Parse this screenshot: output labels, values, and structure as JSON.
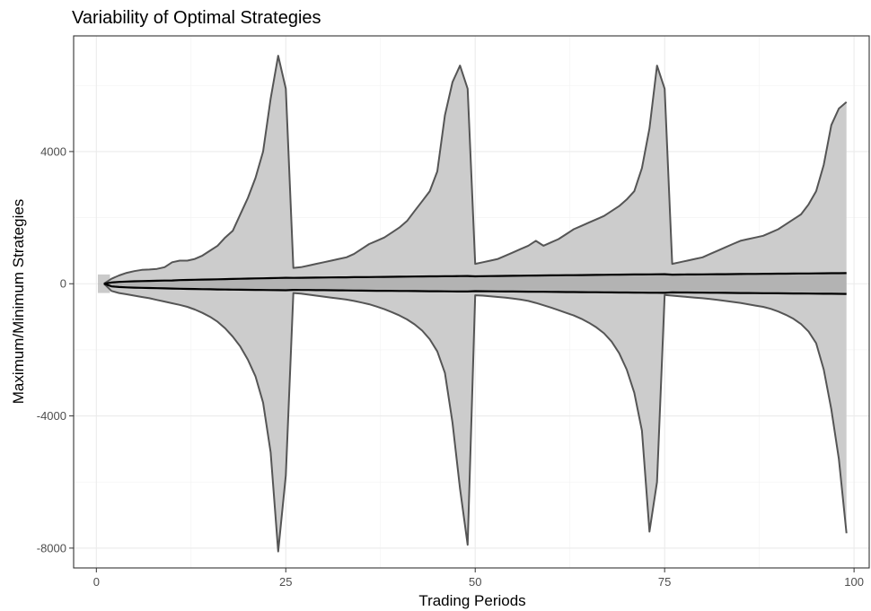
{
  "chart_data": {
    "type": "area",
    "title": "Variability of Optimal Strategies",
    "xlabel": "Trading Periods",
    "ylabel": "Maximum/Minimum Strategies",
    "xlim": [
      -3,
      102
    ],
    "ylim": [
      -8600,
      7500
    ],
    "grid": true,
    "legend": "none",
    "x_ticks": [
      {
        "value": 0,
        "label": "0"
      },
      {
        "value": 25,
        "label": "25"
      },
      {
        "value": 50,
        "label": "50"
      },
      {
        "value": 75,
        "label": "75"
      },
      {
        "value": 100,
        "label": "100"
      }
    ],
    "y_ticks": [
      {
        "value": 4000,
        "label": "4000"
      },
      {
        "value": 0,
        "label": "0"
      },
      {
        "value": -4000,
        "label": "-4000"
      },
      {
        "value": -8000,
        "label": "-8000"
      }
    ],
    "x_minor": [
      12.5,
      37.5,
      62.5,
      87.5
    ],
    "y_minor": [
      6000,
      2000,
      -2000,
      -6000
    ],
    "colors": {
      "outer_fill": "#cccccc",
      "outer_line": "#555555",
      "inner_fill": "#b3b3b3",
      "inner_line": "#000000",
      "initial_fill": "#a6a6a6"
    },
    "series": [
      {
        "x": [
          1,
          2,
          3,
          4,
          5,
          6,
          7,
          8,
          9,
          10,
          11,
          12,
          13,
          14,
          15,
          16,
          17,
          18,
          19,
          20,
          21,
          22,
          23,
          24,
          25,
          26,
          27,
          28,
          29,
          30,
          31,
          32,
          33,
          34,
          35,
          36,
          37,
          38,
          39,
          40,
          41,
          42,
          43,
          44,
          45,
          46,
          47,
          48,
          49,
          50,
          51,
          52,
          53,
          54,
          55,
          56,
          57,
          58,
          59,
          60,
          61,
          62,
          63,
          64,
          65,
          66,
          67,
          68,
          69,
          70,
          71,
          72,
          73,
          74,
          75,
          76,
          77,
          78,
          79,
          80,
          81,
          82,
          83,
          84,
          85,
          86,
          87,
          88,
          89,
          90,
          91,
          92,
          93,
          94,
          95,
          96,
          97,
          98,
          99
        ],
        "upper": [
          0,
          150,
          250,
          330,
          380,
          420,
          430,
          450,
          500,
          650,
          700,
          700,
          750,
          850,
          1000,
          1150,
          1400,
          1600,
          2100,
          2600,
          3200,
          4000,
          5600,
          6900,
          5900,
          480,
          500,
          550,
          600,
          650,
          700,
          750,
          800,
          900,
          1050,
          1200,
          1300,
          1400,
          1550,
          1700,
          1900,
          2200,
          2500,
          2800,
          3400,
          5100,
          6100,
          6600,
          5900,
          600,
          650,
          700,
          750,
          850,
          950,
          1050,
          1150,
          1300,
          1150,
          1250,
          1350,
          1500,
          1650,
          1750,
          1850,
          1950,
          2050,
          2200,
          2350,
          2550,
          2800,
          3500,
          4700,
          6600,
          5900,
          600,
          650,
          700,
          750,
          800,
          900,
          1000,
          1100,
          1200,
          1300,
          1350,
          1400,
          1450,
          1550,
          1650,
          1800,
          1950,
          2100,
          2400,
          2800,
          3600,
          4800,
          5300,
          5500
        ],
        "lower": [
          0,
          -220,
          -280,
          -320,
          -360,
          -400,
          -440,
          -490,
          -540,
          -590,
          -640,
          -700,
          -780,
          -880,
          -1000,
          -1150,
          -1350,
          -1600,
          -1900,
          -2300,
          -2800,
          -3600,
          -5100,
          -8100,
          -5800,
          -280,
          -300,
          -330,
          -360,
          -390,
          -420,
          -450,
          -480,
          -520,
          -570,
          -620,
          -690,
          -770,
          -860,
          -960,
          -1080,
          -1230,
          -1420,
          -1680,
          -2050,
          -2700,
          -4200,
          -6200,
          -7900,
          -350,
          -360,
          -380,
          -400,
          -420,
          -450,
          -480,
          -520,
          -580,
          -650,
          -720,
          -800,
          -880,
          -960,
          -1060,
          -1180,
          -1320,
          -1500,
          -1750,
          -2100,
          -2600,
          -3300,
          -4450,
          -7500,
          -6000,
          -340,
          -360,
          -380,
          -400,
          -420,
          -440,
          -460,
          -490,
          -520,
          -550,
          -580,
          -620,
          -660,
          -700,
          -760,
          -840,
          -940,
          -1060,
          -1220,
          -1450,
          -1800,
          -2600,
          -3800,
          -5300,
          -7550
        ],
        "inner_upper": [
          0,
          40,
          55,
          65,
          75,
          80,
          85,
          90,
          95,
          100,
          110,
          115,
          120,
          125,
          130,
          135,
          140,
          145,
          150,
          155,
          160,
          165,
          170,
          175,
          180,
          178,
          180,
          183,
          185,
          188,
          190,
          193,
          195,
          198,
          200,
          203,
          205,
          208,
          210,
          213,
          215,
          218,
          220,
          223,
          225,
          228,
          230,
          232,
          235,
          225,
          230,
          233,
          235,
          238,
          240,
          243,
          245,
          248,
          250,
          253,
          255,
          258,
          260,
          262,
          265,
          267,
          270,
          272,
          275,
          277,
          280,
          282,
          284,
          286,
          288,
          275,
          278,
          280,
          282,
          284,
          286,
          288,
          290,
          292,
          294,
          296,
          298,
          300,
          302,
          304,
          306,
          308,
          310,
          312,
          314,
          316,
          318,
          320,
          322
        ],
        "inner_lower": [
          0,
          -80,
          -100,
          -110,
          -118,
          -125,
          -130,
          -135,
          -140,
          -145,
          -150,
          -155,
          -160,
          -165,
          -168,
          -172,
          -175,
          -178,
          -180,
          -183,
          -186,
          -189,
          -192,
          -195,
          -198,
          -185,
          -188,
          -190,
          -193,
          -195,
          -198,
          -200,
          -203,
          -205,
          -208,
          -210,
          -212,
          -214,
          -216,
          -218,
          -220,
          -222,
          -224,
          -226,
          -228,
          -230,
          -232,
          -234,
          -236,
          -225,
          -228,
          -230,
          -232,
          -234,
          -236,
          -238,
          -240,
          -242,
          -244,
          -246,
          -248,
          -250,
          -252,
          -254,
          -256,
          -258,
          -260,
          -262,
          -264,
          -266,
          -268,
          -270,
          -272,
          -274,
          -276,
          -262,
          -264,
          -266,
          -268,
          -270,
          -272,
          -274,
          -276,
          -278,
          -280,
          -282,
          -284,
          -286,
          -288,
          -290,
          -292,
          -294,
          -296,
          -298,
          -300,
          -302,
          -304,
          -306,
          -308
        ]
      }
    ]
  }
}
